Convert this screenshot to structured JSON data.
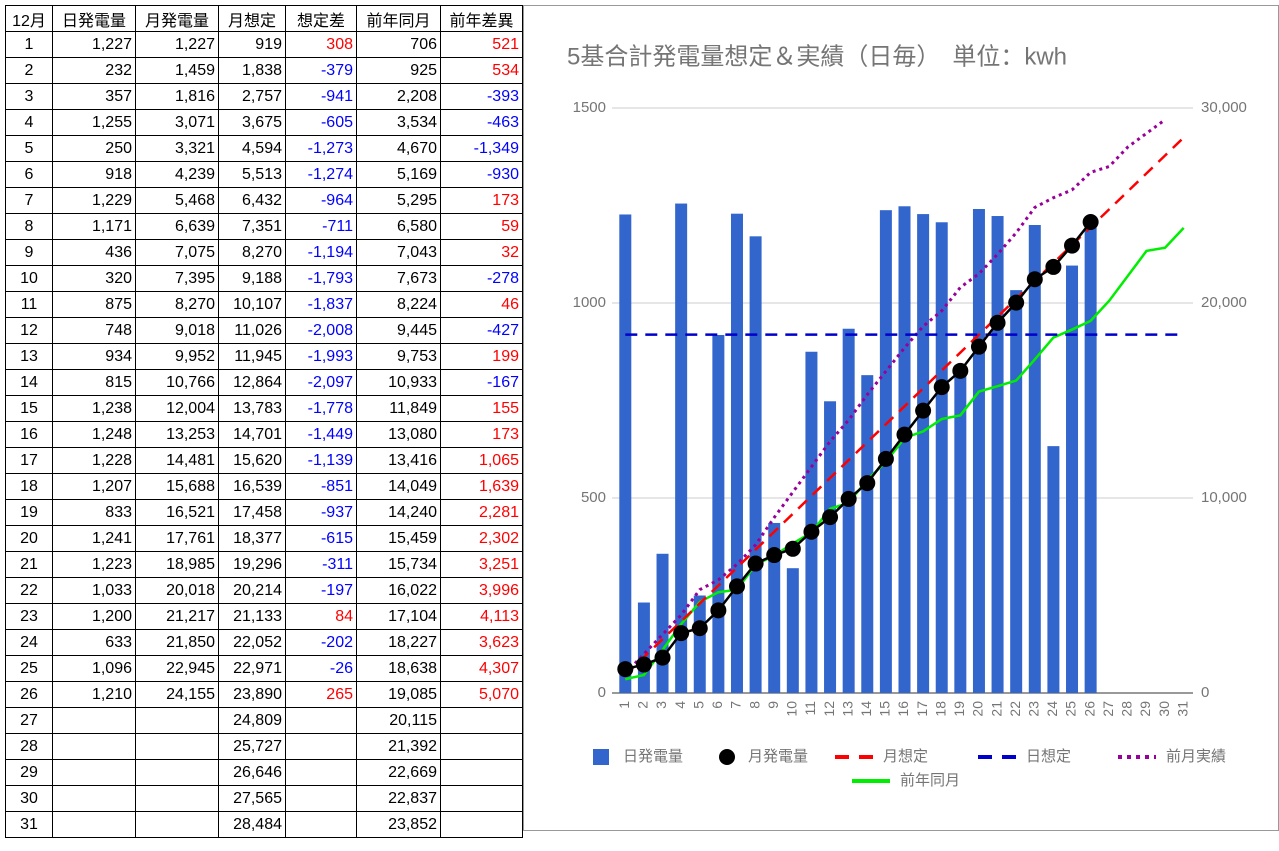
{
  "table": {
    "header": [
      "12月",
      "日発電量",
      "月発電量",
      "月想定",
      "想定差",
      "前年同月",
      "前年差異"
    ],
    "rows": [
      [
        "1",
        "1,227",
        "1,227",
        "919",
        "308",
        "706",
        "521"
      ],
      [
        "2",
        "232",
        "1,459",
        "1,838",
        "-379",
        "925",
        "534"
      ],
      [
        "3",
        "357",
        "1,816",
        "2,757",
        "-941",
        "2,208",
        "-393"
      ],
      [
        "4",
        "1,255",
        "3,071",
        "3,675",
        "-605",
        "3,534",
        "-463"
      ],
      [
        "5",
        "250",
        "3,321",
        "4,594",
        "-1,273",
        "4,670",
        "-1,349"
      ],
      [
        "6",
        "918",
        "4,239",
        "5,513",
        "-1,274",
        "5,169",
        "-930"
      ],
      [
        "7",
        "1,229",
        "5,468",
        "6,432",
        "-964",
        "5,295",
        "173"
      ],
      [
        "8",
        "1,171",
        "6,639",
        "7,351",
        "-711",
        "6,580",
        "59"
      ],
      [
        "9",
        "436",
        "7,075",
        "8,270",
        "-1,194",
        "7,043",
        "32"
      ],
      [
        "10",
        "320",
        "7,395",
        "9,188",
        "-1,793",
        "7,673",
        "-278"
      ],
      [
        "11",
        "875",
        "8,270",
        "10,107",
        "-1,837",
        "8,224",
        "46"
      ],
      [
        "12",
        "748",
        "9,018",
        "11,026",
        "-2,008",
        "9,445",
        "-427"
      ],
      [
        "13",
        "934",
        "9,952",
        "11,945",
        "-1,993",
        "9,753",
        "199"
      ],
      [
        "14",
        "815",
        "10,766",
        "12,864",
        "-2,097",
        "10,933",
        "-167"
      ],
      [
        "15",
        "1,238",
        "12,004",
        "13,783",
        "-1,778",
        "11,849",
        "155"
      ],
      [
        "16",
        "1,248",
        "13,253",
        "14,701",
        "-1,449",
        "13,080",
        "173"
      ],
      [
        "17",
        "1,228",
        "14,481",
        "15,620",
        "-1,139",
        "13,416",
        "1,065"
      ],
      [
        "18",
        "1,207",
        "15,688",
        "16,539",
        "-851",
        "14,049",
        "1,639"
      ],
      [
        "19",
        "833",
        "16,521",
        "17,458",
        "-937",
        "14,240",
        "2,281"
      ],
      [
        "20",
        "1,241",
        "17,761",
        "18,377",
        "-615",
        "15,459",
        "2,302"
      ],
      [
        "21",
        "1,223",
        "18,985",
        "19,296",
        "-311",
        "15,734",
        "3,251"
      ],
      [
        "22",
        "1,033",
        "20,018",
        "20,214",
        "-197",
        "16,022",
        "3,996"
      ],
      [
        "23",
        "1,200",
        "21,217",
        "21,133",
        "84",
        "17,104",
        "4,113"
      ],
      [
        "24",
        "633",
        "21,850",
        "22,052",
        "-202",
        "18,227",
        "3,623"
      ],
      [
        "25",
        "1,096",
        "22,945",
        "22,971",
        "-26",
        "18,638",
        "4,307"
      ],
      [
        "26",
        "1,210",
        "24,155",
        "23,890",
        "265",
        "19,085",
        "5,070"
      ],
      [
        "27",
        null,
        null,
        "24,809",
        null,
        "20,115",
        null
      ],
      [
        "28",
        null,
        null,
        "25,727",
        null,
        "21,392",
        null
      ],
      [
        "29",
        null,
        null,
        "26,646",
        null,
        "22,669",
        null
      ],
      [
        "30",
        null,
        null,
        "27,565",
        null,
        "22,837",
        null
      ],
      [
        "31",
        null,
        null,
        "28,484",
        null,
        "23,852",
        null
      ]
    ]
  },
  "chart_data": {
    "type": "combo",
    "title": "5基合計発電量想定＆実績（日毎）　単位：kwh",
    "categories": [
      "1",
      "2",
      "3",
      "4",
      "5",
      "6",
      "7",
      "8",
      "9",
      "10",
      "11",
      "12",
      "13",
      "14",
      "15",
      "16",
      "17",
      "18",
      "19",
      "20",
      "21",
      "22",
      "23",
      "24",
      "25",
      "26",
      "27",
      "28",
      "29",
      "30",
      "31"
    ],
    "ylim": [
      0,
      1500
    ],
    "yticks": [
      0,
      500,
      1000,
      1500
    ],
    "y2lim": [
      0,
      30000
    ],
    "y2ticks": [
      0,
      {
        "value": 10000,
        "label": "10,000"
      },
      {
        "value": 20000,
        "label": "20,000"
      },
      {
        "value": 30000,
        "label": "30,000"
      }
    ],
    "grid": true,
    "legend": "bottom",
    "series": [
      {
        "name": "日発電量",
        "type": "bar",
        "color": "#3366cc",
        "axis": "y",
        "values": [
          1227,
          232,
          357,
          1255,
          250,
          918,
          1229,
          1171,
          436,
          320,
          875,
          748,
          934,
          815,
          1238,
          1248,
          1228,
          1207,
          833,
          1241,
          1223,
          1033,
          1200,
          633,
          1096,
          1210,
          null,
          null,
          null,
          null,
          null
        ]
      },
      {
        "name": "前年同月",
        "type": "line",
        "style": "solid",
        "color": "#00ee00",
        "axis": "y2",
        "values": [
          706,
          925,
          2208,
          3534,
          4670,
          5169,
          5295,
          6580,
          7043,
          7673,
          8224,
          9445,
          9753,
          10933,
          11849,
          13080,
          13416,
          14049,
          14240,
          15459,
          15734,
          16022,
          17104,
          18227,
          18638,
          19085,
          20115,
          21392,
          22669,
          22837,
          23852
        ]
      },
      {
        "name": "前月実績",
        "type": "line",
        "style": "dotted",
        "color": "#990099",
        "axis": "y2",
        "values": [
          1000,
          2000,
          3000,
          4000,
          5300,
          5800,
          6600,
          7600,
          9000,
          10300,
          11600,
          12900,
          14000,
          15300,
          16500,
          17700,
          18800,
          19600,
          20800,
          21500,
          22500,
          23600,
          24900,
          25400,
          25800,
          26700,
          27000,
          28000,
          28700,
          29400,
          null
        ]
      },
      {
        "name": "月想定",
        "type": "line",
        "style": "dashed",
        "color": "#ff0000",
        "axis": "y2",
        "values": [
          919,
          1838,
          2757,
          3675,
          4594,
          5513,
          6432,
          7351,
          8270,
          9188,
          10107,
          11026,
          11945,
          12864,
          13783,
          14701,
          15620,
          16539,
          17458,
          18377,
          19296,
          20214,
          21133,
          22052,
          22971,
          23890,
          24809,
          25727,
          26646,
          27565,
          28484
        ]
      },
      {
        "name": "日想定",
        "type": "line",
        "style": "dashed",
        "color": "#0000cc",
        "axis": "y",
        "values": [
          919,
          919,
          919,
          919,
          919,
          919,
          919,
          919,
          919,
          919,
          919,
          919,
          919,
          919,
          919,
          919,
          919,
          919,
          919,
          919,
          919,
          919,
          919,
          919,
          919,
          919,
          919,
          919,
          919,
          919,
          919
        ]
      },
      {
        "name": "月発電量",
        "type": "marker-line",
        "color": "#000000",
        "axis": "y2",
        "values": [
          1227,
          1459,
          1816,
          3071,
          3321,
          4239,
          5468,
          6639,
          7075,
          7395,
          8270,
          9018,
          9952,
          10766,
          12004,
          13253,
          14481,
          15688,
          16521,
          17761,
          18985,
          20018,
          21217,
          21850,
          22945,
          24155,
          null,
          null,
          null,
          null,
          null
        ]
      }
    ]
  }
}
